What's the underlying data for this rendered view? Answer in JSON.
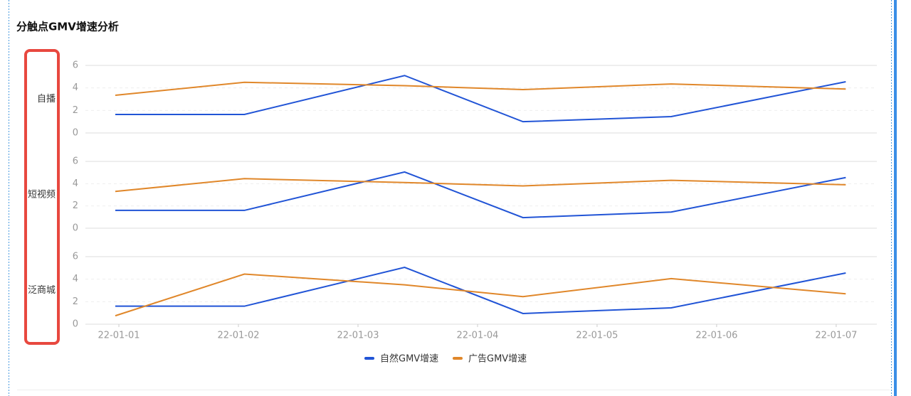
{
  "chart_data": {
    "type": "line",
    "title": "分触点GMV增速分析",
    "x": [
      0.97,
      2.05,
      3.39,
      4.38,
      5.62,
      7.08
    ],
    "xlim": [
      0.72,
      7.34
    ],
    "xticks": [
      {
        "value": 1,
        "label": "22-01-01"
      },
      {
        "value": 2,
        "label": "22-01-02"
      },
      {
        "value": 3,
        "label": "22-01-03"
      },
      {
        "value": 4,
        "label": "22-01-04"
      },
      {
        "value": 5,
        "label": "22-01-05"
      },
      {
        "value": 6,
        "label": "22-01-06"
      },
      {
        "value": 7,
        "label": "22-01-07"
      }
    ],
    "ylim": [
      0,
      6
    ],
    "yticks": [
      0,
      2,
      4,
      6
    ],
    "series": [
      {
        "name": "自然GMV增速",
        "color": "#2154d6"
      },
      {
        "name": "广告GMV增速",
        "color": "#e0872a"
      }
    ],
    "facets": [
      {
        "label": "自播",
        "series_values": [
          [
            1.64,
            1.64,
            5.1,
            1.0,
            1.45,
            4.55
          ],
          [
            3.35,
            4.5,
            4.2,
            3.85,
            4.35,
            3.9
          ]
        ]
      },
      {
        "label": "短视频",
        "series_values": [
          [
            1.6,
            1.6,
            5.05,
            0.95,
            1.45,
            4.55
          ],
          [
            3.3,
            4.45,
            4.1,
            3.8,
            4.3,
            3.9
          ]
        ]
      },
      {
        "label": "泛商城",
        "series_values": [
          [
            1.6,
            1.6,
            5.05,
            0.95,
            1.45,
            4.55
          ],
          [
            0.75,
            4.45,
            3.5,
            2.45,
            4.05,
            2.7
          ]
        ]
      }
    ]
  }
}
